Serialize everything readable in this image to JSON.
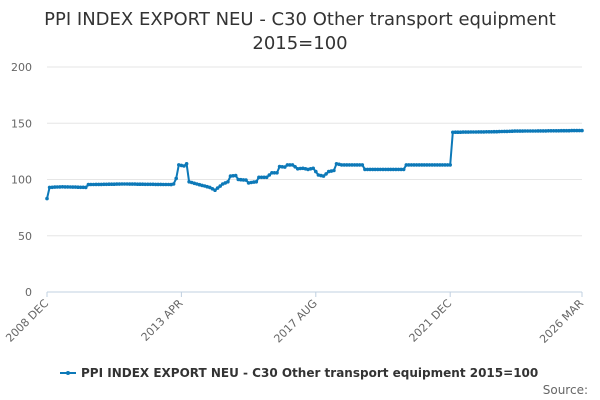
{
  "chart_data": {
    "type": "line",
    "title": "PPI INDEX EXPORT NEU - C30 Other transport equipment",
    "subtitle": "2015=100",
    "xlabel": "",
    "ylabel": "",
    "ylim": [
      0,
      200
    ],
    "yticks": [
      "0",
      "50",
      "100",
      "150",
      "200"
    ],
    "xlim": [
      "2008 DEC",
      "2026 MAR"
    ],
    "xticks": [
      "2008 DEC",
      "2013 APR",
      "2017 AUG",
      "2021 DEC",
      "2026 MAR"
    ],
    "grid": "horizontal",
    "legend": "bottom",
    "series_color": "#0d79b8",
    "series": [
      {
        "name": "PPI INDEX EXPORT NEU - C30 Other transport equipment 2015=100",
        "points": [
          [
            "2008 DEC",
            83
          ],
          [
            "2009 JAN",
            93
          ],
          [
            "2009 JUN",
            93.5
          ],
          [
            "2010 MAR",
            93
          ],
          [
            "2010 APR",
            95.5
          ],
          [
            "2011 JUN",
            96
          ],
          [
            "2012 DEC",
            95.5
          ],
          [
            "2013 JAN",
            96
          ],
          [
            "2013 FEB",
            101
          ],
          [
            "2013 MAR",
            113
          ],
          [
            "2013 MAY",
            112
          ],
          [
            "2013 JUN",
            114
          ],
          [
            "2013 JUL",
            98
          ],
          [
            "2013 OCT",
            96
          ],
          [
            "2014 MAR",
            93
          ],
          [
            "2014 MAY",
            90.5
          ],
          [
            "2014 AUG",
            96
          ],
          [
            "2014 OCT",
            98
          ],
          [
            "2014 NOV",
            103
          ],
          [
            "2015 JAN",
            103.5
          ],
          [
            "2015 FEB",
            100
          ],
          [
            "2015 MAY",
            99.5
          ],
          [
            "2015 JUN",
            97
          ],
          [
            "2015 SEP",
            98
          ],
          [
            "2015 OCT",
            102
          ],
          [
            "2016 JAN",
            102
          ],
          [
            "2016 MAR",
            106
          ],
          [
            "2016 MAY",
            106
          ],
          [
            "2016 JUN",
            111.5
          ],
          [
            "2016 AUG",
            111
          ],
          [
            "2016 SEP",
            113
          ],
          [
            "2016 NOV",
            113
          ],
          [
            "2017 JAN",
            109.5
          ],
          [
            "2017 MAR",
            110
          ],
          [
            "2017 MAY",
            109
          ],
          [
            "2017 JUL",
            110
          ],
          [
            "2017 SEP",
            104
          ],
          [
            "2017 NOV",
            103
          ],
          [
            "2018 JAN",
            107
          ],
          [
            "2018 MAR",
            108
          ],
          [
            "2018 APR",
            114
          ],
          [
            "2018 JUN",
            113
          ],
          [
            "2019 FEB",
            113
          ],
          [
            "2019 MAR",
            109
          ],
          [
            "2020 JUN",
            109
          ],
          [
            "2020 JUL",
            113
          ],
          [
            "2021 DEC",
            113
          ],
          [
            "2022 JAN",
            142
          ],
          [
            "2023 JUN",
            142.5
          ],
          [
            "2024 JAN",
            143
          ],
          [
            "2026 MAR",
            143.5
          ]
        ]
      }
    ]
  },
  "source_label": "Source:"
}
